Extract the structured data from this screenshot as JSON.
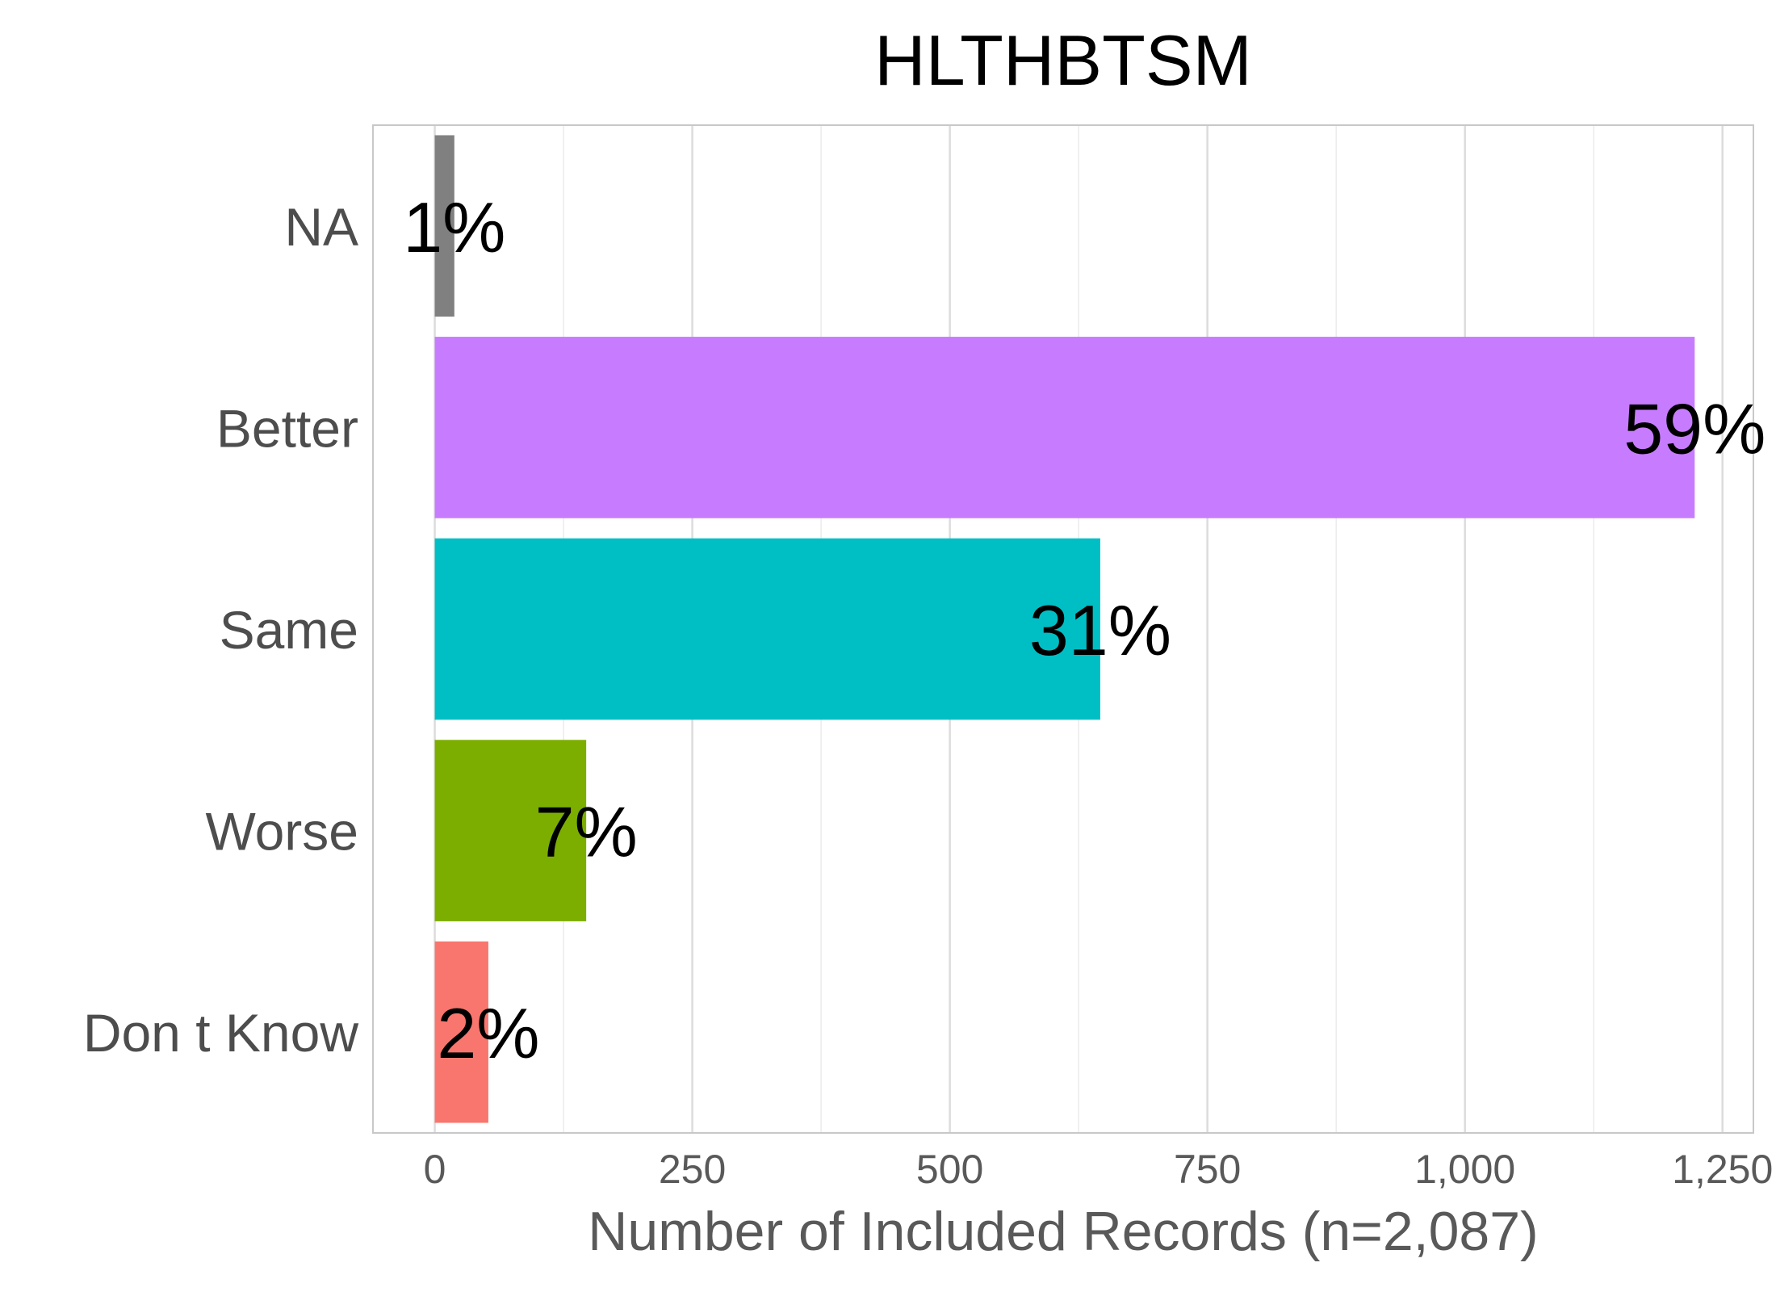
{
  "chart_data": {
    "type": "bar",
    "orientation": "horizontal",
    "title": "HLTHBTSM",
    "xlabel": "Number of Included Records (n=2,087)",
    "ylabel": "",
    "categories": [
      "NA",
      "Better",
      "Same",
      "Worse",
      "Don t Know"
    ],
    "values": [
      19,
      1223,
      646,
      147,
      52
    ],
    "labels": [
      "1%",
      "59%",
      "31%",
      "7%",
      "2%"
    ],
    "colors": [
      "#808080",
      "#C77CFF",
      "#00BFC4",
      "#7CAE00",
      "#F8766D"
    ],
    "xlim": [
      -60,
      1280
    ],
    "xticks": [
      0,
      250,
      500,
      750,
      1000,
      1250
    ],
    "xtick_labels": [
      "0",
      "250",
      "500",
      "750",
      "1,000",
      "1,250"
    ],
    "grid": true,
    "legend": "none"
  }
}
